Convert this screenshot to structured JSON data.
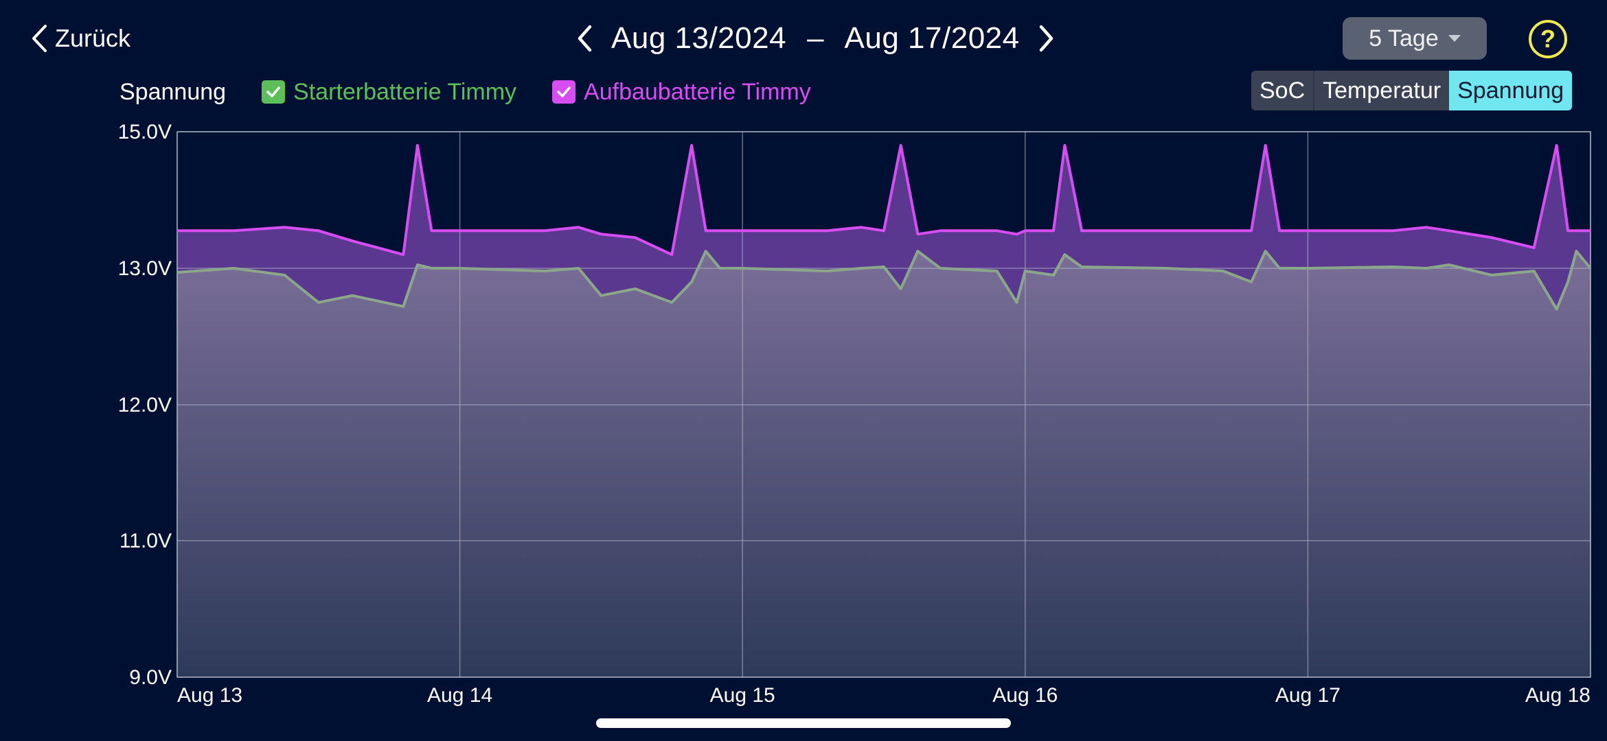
{
  "nav": {
    "back_label": "Zurück"
  },
  "date_range": {
    "start": "Aug 13/2024",
    "separator": "–",
    "end": "Aug 17/2024"
  },
  "range_select": {
    "value": "5 Tage"
  },
  "help": {
    "label": "?"
  },
  "legend": {
    "title": "Spannung",
    "series": [
      {
        "name": "Starterbatterie Timmy",
        "color": "#5cbf58",
        "checked": true
      },
      {
        "name": "Aufbaubatterie Timmy",
        "color": "#d64df2",
        "checked": true
      }
    ]
  },
  "segments": [
    {
      "label": "SoC",
      "active": false
    },
    {
      "label": "Temperatur",
      "active": false
    },
    {
      "label": "Spannung",
      "active": true
    }
  ],
  "chart_data": {
    "type": "area",
    "y_ticks": [
      "15.0V",
      "13.0V",
      "12.0V",
      "11.0V",
      "9.0V"
    ],
    "x_ticks": [
      "Aug 13",
      "Aug 14",
      "Aug 15",
      "Aug 16",
      "Aug 17",
      "Aug 18"
    ],
    "ylim": [
      9.0,
      15.0
    ],
    "x": [
      13.0,
      13.2,
      13.38,
      13.5,
      13.62,
      13.8,
      13.85,
      13.9,
      13.95,
      14.0,
      14.3,
      14.42,
      14.5,
      14.62,
      14.75,
      14.82,
      14.87,
      14.92,
      15.0,
      15.3,
      15.42,
      15.5,
      15.56,
      15.62,
      15.7,
      15.9,
      15.97,
      16.0,
      16.1,
      16.14,
      16.2,
      16.5,
      16.7,
      16.8,
      16.85,
      16.9,
      17.0,
      17.3,
      17.42,
      17.5,
      17.65,
      17.8,
      17.88,
      17.92,
      17.95,
      18.0
    ],
    "series": [
      {
        "name": "Starterbatterie Timmy",
        "color": "#8aa889",
        "values": [
          12.97,
          13.0,
          12.95,
          12.75,
          12.8,
          12.72,
          13.05,
          13.0,
          13.0,
          13.0,
          12.98,
          13.0,
          12.8,
          12.85,
          12.75,
          12.9,
          13.25,
          13.0,
          13.0,
          12.98,
          13.0,
          13.02,
          12.85,
          13.25,
          13.0,
          12.98,
          12.75,
          12.98,
          12.95,
          13.2,
          13.02,
          13.0,
          12.98,
          12.9,
          13.25,
          13.0,
          13.0,
          13.02,
          13.0,
          13.05,
          12.95,
          12.98,
          12.7,
          12.9,
          13.25,
          13.0
        ]
      },
      {
        "name": "Aufbaubatterie Timmy",
        "color": "#d64df2",
        "values": [
          13.55,
          13.55,
          13.6,
          13.55,
          13.4,
          13.2,
          14.8,
          13.55,
          13.55,
          13.55,
          13.55,
          13.6,
          13.5,
          13.45,
          13.2,
          14.8,
          13.55,
          13.55,
          13.55,
          13.55,
          13.6,
          13.55,
          14.8,
          13.5,
          13.55,
          13.55,
          13.5,
          13.55,
          13.55,
          14.8,
          13.55,
          13.55,
          13.55,
          13.55,
          14.8,
          13.55,
          13.55,
          13.55,
          13.6,
          13.55,
          13.45,
          13.3,
          14.8,
          13.55,
          13.55,
          13.55
        ]
      }
    ]
  }
}
